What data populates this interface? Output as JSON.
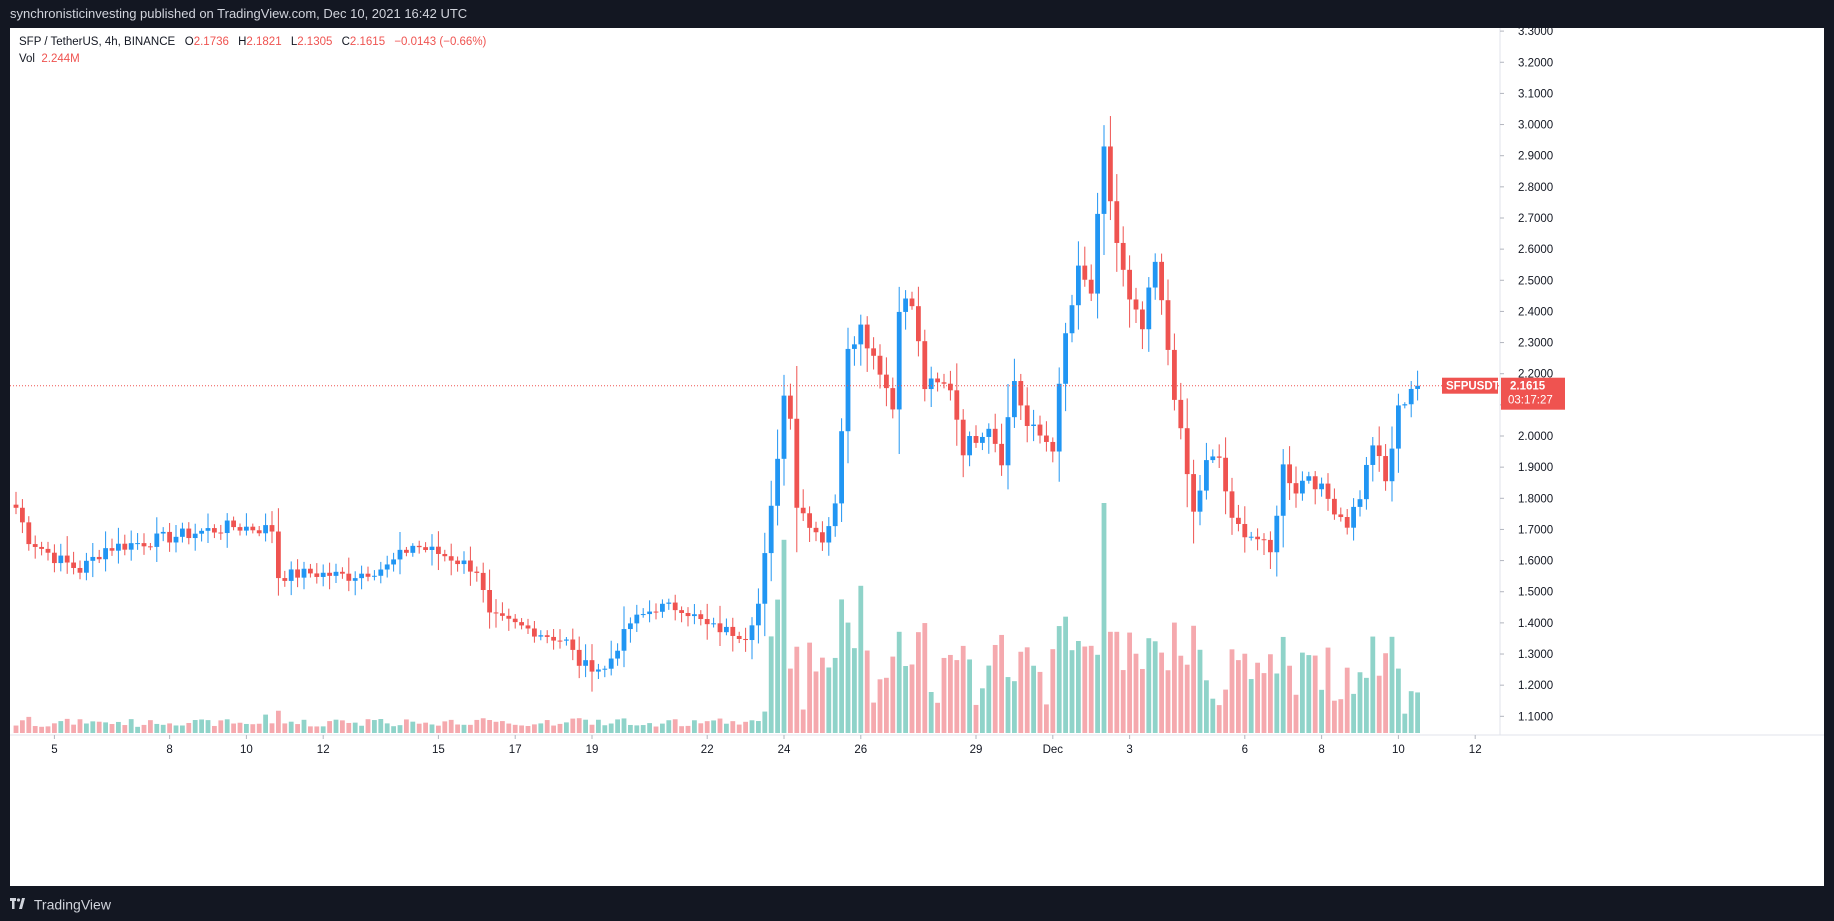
{
  "header": {
    "published_text": "synchronisticinvesting published on TradingView.com, Dec 10, 2021 16:42 UTC"
  },
  "legend": {
    "symbol": "SFP / TetherUS, 4h, BINANCE",
    "open_label": "O",
    "open": "2.1736",
    "high_label": "H",
    "high": "2.1821",
    "low_label": "L",
    "low": "2.1305",
    "close_label": "C",
    "close": "2.1615",
    "change": "−0.0143 (−0.66%)",
    "vol_label": "Vol",
    "vol_value": "2.244M"
  },
  "price_badge": {
    "symbol": "SFPUSDT",
    "price": "2.1615",
    "countdown": "03:17:27"
  },
  "footer": {
    "brand": "TradingView"
  },
  "colors": {
    "up": "#2196f3",
    "down": "#ef5350",
    "vol_up": "#8fd3c9",
    "vol_down": "#f5a9ae",
    "background": "#ffffff",
    "frame": "#131722"
  },
  "chart_data": {
    "type": "candlestick",
    "timeframe": "4h",
    "ylim": [
      1.04,
      3.31
    ],
    "y_ticks": [
      "3.3000",
      "3.2000",
      "3.1000",
      "3.0000",
      "2.9000",
      "2.8000",
      "2.7000",
      "2.6000",
      "2.5000",
      "2.4000",
      "2.3000",
      "2.2000",
      "2.1000",
      "2.0000",
      "1.9000",
      "1.8000",
      "1.7000",
      "1.6000",
      "1.5000",
      "1.4000",
      "1.3000",
      "1.2000",
      "1.1000"
    ],
    "y_tick_values": [
      3.3,
      3.2,
      3.1,
      3.0,
      2.9,
      2.8,
      2.7,
      2.6,
      2.5,
      2.4,
      2.3,
      2.2,
      2.1,
      2.0,
      1.9,
      1.8,
      1.7,
      1.6,
      1.5,
      1.4,
      1.3,
      1.2,
      1.1
    ],
    "x_ticks": [
      {
        "label": "5",
        "bar": 6
      },
      {
        "label": "8",
        "bar": 24
      },
      {
        "label": "10",
        "bar": 36
      },
      {
        "label": "12",
        "bar": 48
      },
      {
        "label": "15",
        "bar": 66
      },
      {
        "label": "17",
        "bar": 78
      },
      {
        "label": "19",
        "bar": 90
      },
      {
        "label": "22",
        "bar": 108
      },
      {
        "label": "24",
        "bar": 120
      },
      {
        "label": "26",
        "bar": 132
      },
      {
        "label": "29",
        "bar": 150
      },
      {
        "label": "Dec",
        "bar": 162
      },
      {
        "label": "3",
        "bar": 174
      },
      {
        "label": "6",
        "bar": 192
      },
      {
        "label": "8",
        "bar": 204
      },
      {
        "label": "10",
        "bar": 216
      },
      {
        "label": "12",
        "bar": 228
      }
    ],
    "last_price": 2.1615,
    "anchors": [
      [
        0,
        1.77
      ],
      [
        2,
        1.67
      ],
      [
        6,
        1.61
      ],
      [
        10,
        1.57
      ],
      [
        14,
        1.64
      ],
      [
        20,
        1.66
      ],
      [
        28,
        1.69
      ],
      [
        34,
        1.71
      ],
      [
        40,
        1.7
      ],
      [
        41,
        1.55
      ],
      [
        46,
        1.56
      ],
      [
        52,
        1.55
      ],
      [
        58,
        1.58
      ],
      [
        62,
        1.65
      ],
      [
        68,
        1.61
      ],
      [
        72,
        1.57
      ],
      [
        74,
        1.42
      ],
      [
        80,
        1.38
      ],
      [
        86,
        1.34
      ],
      [
        88,
        1.27
      ],
      [
        92,
        1.25
      ],
      [
        96,
        1.4
      ],
      [
        100,
        1.45
      ],
      [
        104,
        1.45
      ],
      [
        108,
        1.39
      ],
      [
        114,
        1.36
      ],
      [
        116,
        1.46
      ],
      [
        118,
        1.76
      ],
      [
        120,
        2.13
      ],
      [
        121,
        2.08
      ],
      [
        122,
        1.78
      ],
      [
        126,
        1.67
      ],
      [
        128,
        1.77
      ],
      [
        130,
        2.3
      ],
      [
        132,
        2.35
      ],
      [
        135,
        2.22
      ],
      [
        137,
        2.09
      ],
      [
        138,
        2.43
      ],
      [
        140,
        2.42
      ],
      [
        142,
        2.16
      ],
      [
        146,
        2.16
      ],
      [
        148,
        1.96
      ],
      [
        152,
        2.04
      ],
      [
        154,
        1.93
      ],
      [
        156,
        2.18
      ],
      [
        158,
        2.03
      ],
      [
        162,
        1.97
      ],
      [
        164,
        2.32
      ],
      [
        166,
        2.52
      ],
      [
        168,
        2.46
      ],
      [
        170,
        2.9
      ],
      [
        172,
        2.62
      ],
      [
        174,
        2.42
      ],
      [
        176,
        2.34
      ],
      [
        178,
        2.55
      ],
      [
        180,
        2.28
      ],
      [
        182,
        2.0
      ],
      [
        184,
        1.75
      ],
      [
        186,
        1.91
      ],
      [
        188,
        1.93
      ],
      [
        190,
        1.72
      ],
      [
        194,
        1.67
      ],
      [
        196,
        1.62
      ],
      [
        198,
        1.9
      ],
      [
        200,
        1.83
      ],
      [
        202,
        1.88
      ],
      [
        206,
        1.77
      ],
      [
        208,
        1.72
      ],
      [
        210,
        1.81
      ],
      [
        212,
        1.98
      ],
      [
        214,
        1.85
      ],
      [
        216,
        2.08
      ],
      [
        218,
        2.16
      ]
    ],
    "volume_spikes": [
      {
        "bar": 39,
        "value": 0.02
      },
      {
        "bar": 55,
        "value": 0.015
      },
      {
        "bar": 118,
        "value": 0.105
      },
      {
        "bar": 119,
        "value": 0.145
      },
      {
        "bar": 120,
        "value": 0.21
      },
      {
        "bar": 121,
        "value": 0.07
      },
      {
        "bar": 130,
        "value": 0.12
      },
      {
        "bar": 132,
        "value": 0.16
      },
      {
        "bar": 138,
        "value": 0.11
      },
      {
        "bar": 166,
        "value": 0.1
      },
      {
        "bar": 169,
        "value": 0.085
      },
      {
        "bar": 170,
        "value": 0.25
      },
      {
        "bar": 171,
        "value": 0.11
      },
      {
        "bar": 172,
        "value": 0.11
      },
      {
        "bar": 216,
        "value": 0.07
      }
    ],
    "volume_scale_max": 0.25
  }
}
